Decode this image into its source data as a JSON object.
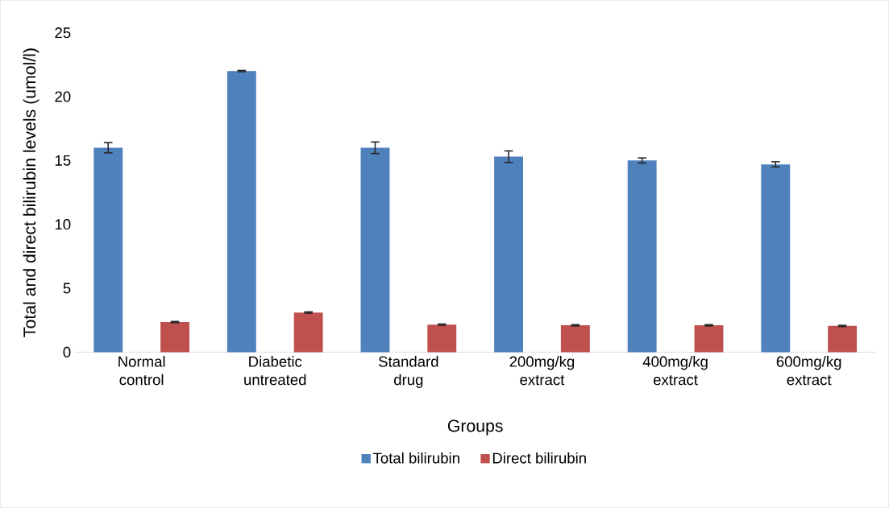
{
  "chart_data": {
    "type": "bar",
    "xlabel": "Groups",
    "ylabel": "Total and direct bilirubin levels (umol/l)",
    "categories": [
      "Normal control",
      "Diabetic untreated",
      "Standard drug",
      "200mg/kg extract",
      "400mg/kg extract",
      "600mg/kg extract"
    ],
    "series": [
      {
        "name": "Total bilirubin",
        "color": "#4f81bd",
        "values": [
          16.0,
          22.0,
          16.0,
          15.3,
          15.0,
          14.7
        ],
        "errors": [
          0.4,
          0.05,
          0.45,
          0.45,
          0.2,
          0.2
        ]
      },
      {
        "name": "Direct bilirubin",
        "color": "#c0504d",
        "values": [
          2.35,
          3.1,
          2.15,
          2.1,
          2.1,
          2.05
        ],
        "errors": [
          0.05,
          0.05,
          0.05,
          0.05,
          0.05,
          0.05
        ]
      }
    ],
    "ylim": [
      0,
      25
    ],
    "yticks": [
      0,
      5,
      10,
      15,
      20,
      25
    ],
    "legend": "bottom"
  }
}
